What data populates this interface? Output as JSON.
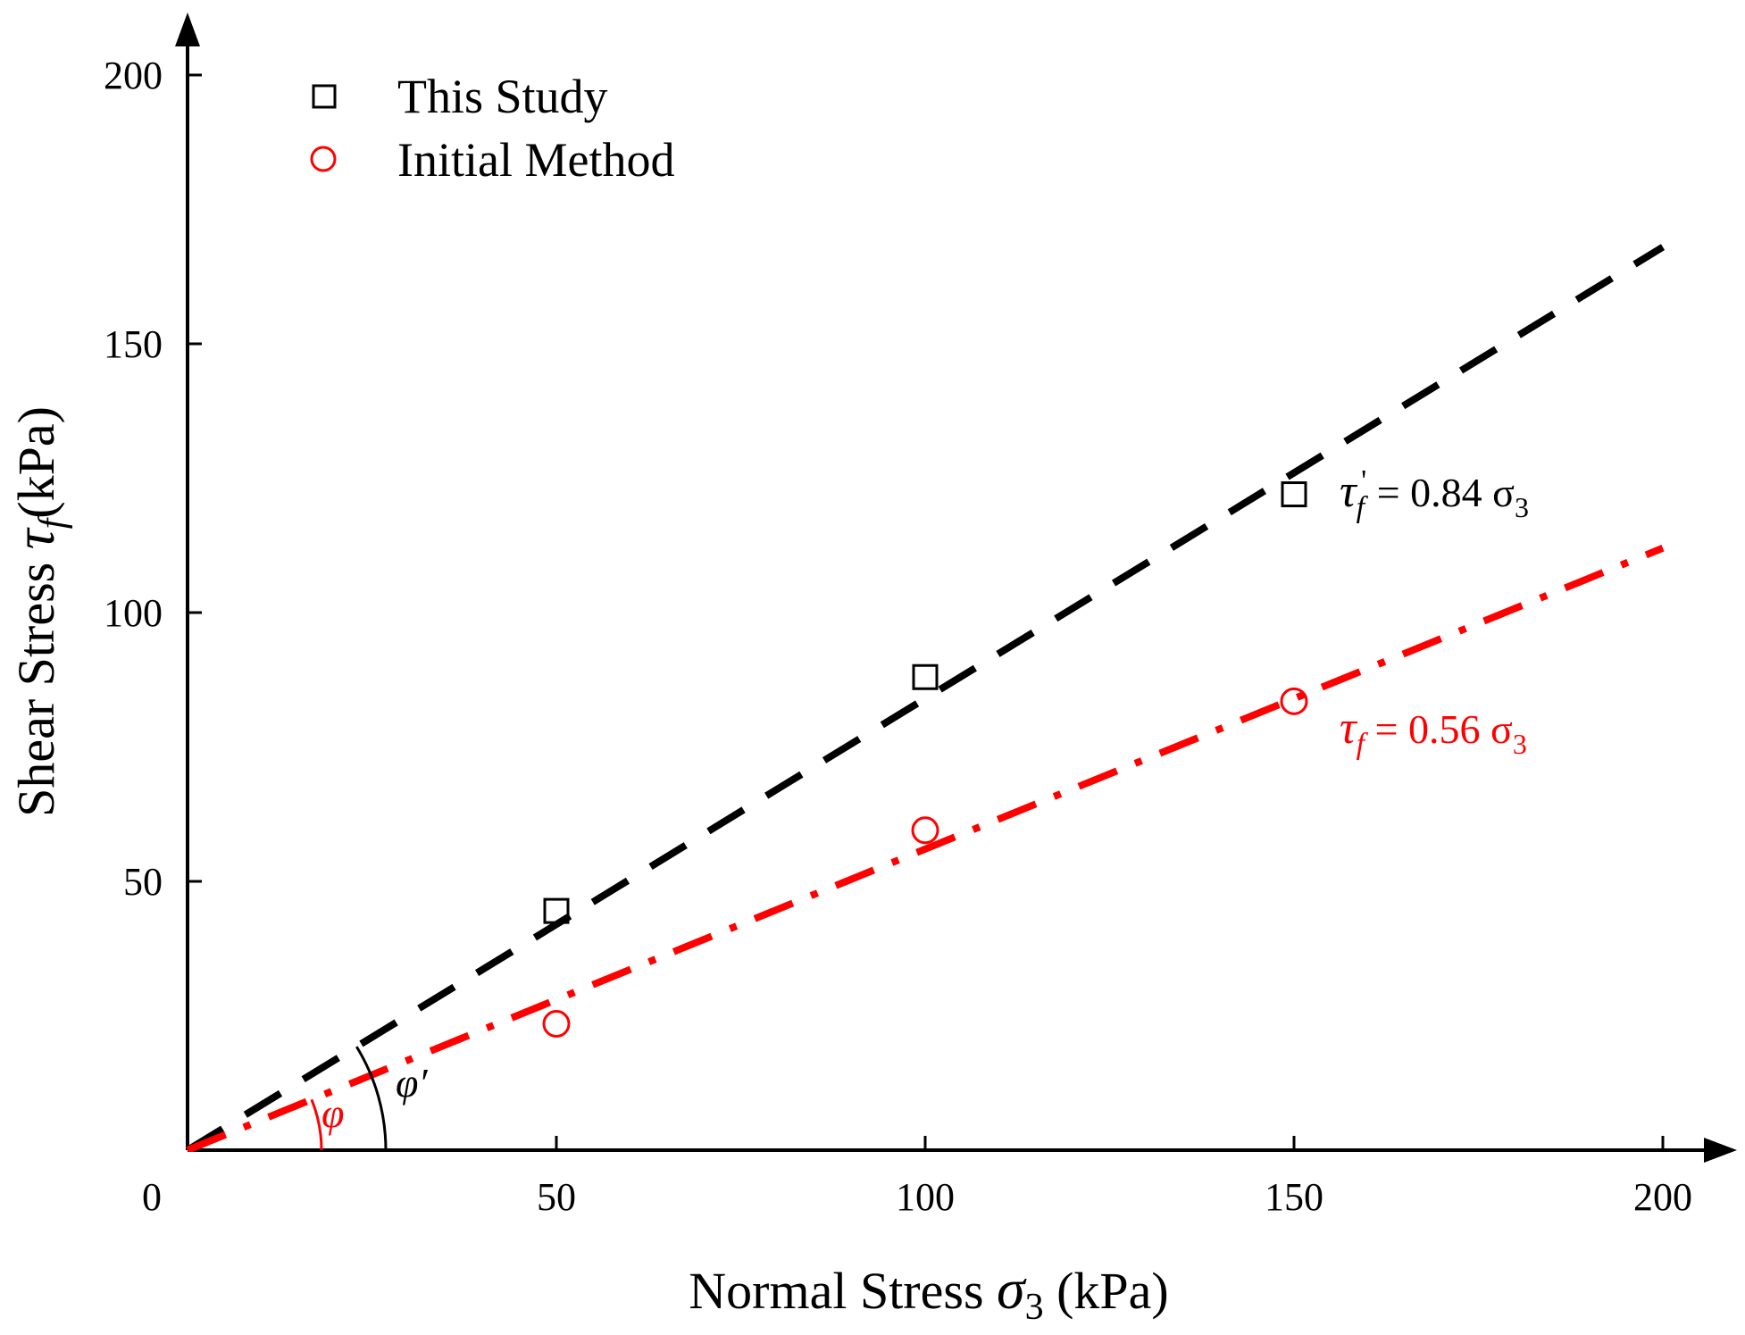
{
  "chart_data": {
    "type": "scatter",
    "title": "",
    "xlabel": "Normal Stress σ3 (kPa)",
    "xlabel_main": "Normal Stress ",
    "xlabel_symbol": "σ",
    "xlabel_sub": "3",
    "xlabel_unit": " (kPa)",
    "ylabel": "Shear Stress τf (kPa)",
    "ylabel_main": "Shear Stress ",
    "ylabel_symbol": "τ",
    "ylabel_sub": "f",
    "ylabel_unit": "(kPa)",
    "xlim": [
      0,
      200
    ],
    "ylim": [
      0,
      200
    ],
    "x_ticks": [
      0,
      50,
      100,
      150,
      200
    ],
    "y_ticks": [
      50,
      100,
      150,
      200
    ],
    "x_tick_labels": [
      "0",
      "50",
      "100",
      "150",
      "200"
    ],
    "y_tick_labels": [
      "50",
      "100",
      "150",
      "200"
    ],
    "grid": false,
    "legend_position": "top-left",
    "series": [
      {
        "name": "This Study",
        "marker": "square",
        "color": "#000000",
        "x": [
          50,
          100,
          150
        ],
        "y": [
          44.5,
          88,
          122
        ],
        "fit": {
          "slope": 0.84,
          "intercept": 0,
          "style": "dashed",
          "x_range": [
            0,
            200
          ]
        }
      },
      {
        "name": "Initial Method",
        "marker": "circle",
        "color": "#ff0000",
        "x": [
          50,
          100,
          150
        ],
        "y": [
          23.5,
          59.5,
          83.5
        ],
        "fit": {
          "slope": 0.56,
          "intercept": 0,
          "style": "dashdot",
          "x_range": [
            0,
            200
          ]
        }
      }
    ],
    "annotations": [
      {
        "id": "eq1",
        "symbol": "τ",
        "sub": "f",
        "prime": "'",
        "rest": " = 0.84 σ",
        "rest_sub": "3",
        "color": "#000000"
      },
      {
        "id": "eq2",
        "symbol": "τ",
        "sub": "f",
        "prime": "",
        "rest": " = 0.56 σ",
        "rest_sub": "3",
        "color": "#ff0000"
      },
      {
        "id": "angle1",
        "text": "φ′",
        "color": "#000000"
      },
      {
        "id": "angle2",
        "text": "φ",
        "color": "#ff0000"
      }
    ]
  }
}
